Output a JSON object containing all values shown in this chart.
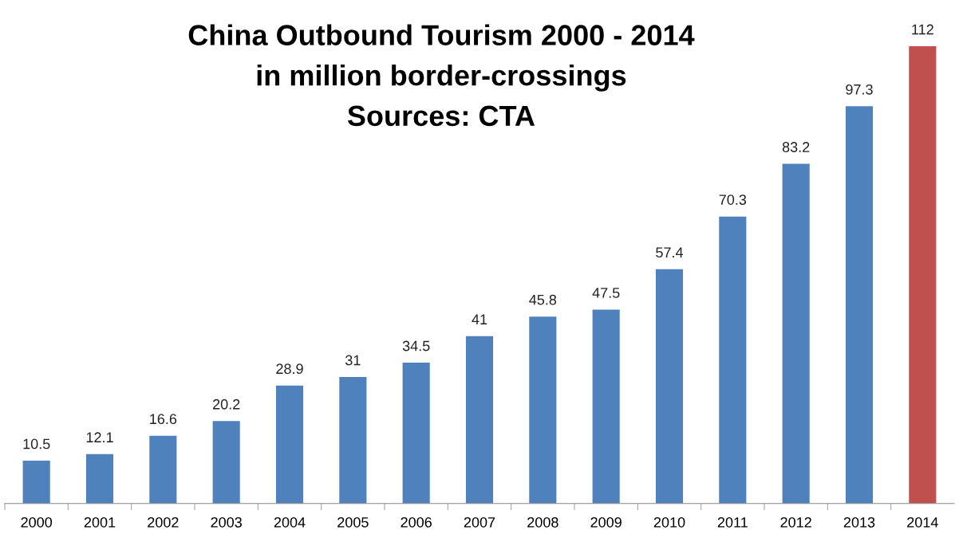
{
  "chart_data": {
    "type": "bar",
    "title": "China Outbound Tourism 2000 - 2014",
    "subtitle": "in million border-crossings",
    "annotations": [
      "Sources: CTA"
    ],
    "categories": [
      "2000",
      "2001",
      "2002",
      "2003",
      "2004",
      "2005",
      "2006",
      "2007",
      "2008",
      "2009",
      "2010",
      "2011",
      "2012",
      "2013",
      "2014"
    ],
    "values": [
      10.5,
      12.1,
      16.6,
      20.2,
      28.9,
      31,
      34.5,
      41,
      45.8,
      47.5,
      57.4,
      70.3,
      83.2,
      97.3,
      112
    ],
    "colors": [
      "#4f81bd",
      "#4f81bd",
      "#4f81bd",
      "#4f81bd",
      "#4f81bd",
      "#4f81bd",
      "#4f81bd",
      "#4f81bd",
      "#4f81bd",
      "#4f81bd",
      "#4f81bd",
      "#4f81bd",
      "#4f81bd",
      "#4f81bd",
      "#c0504d"
    ],
    "data_labels": true,
    "grid": false,
    "legend": false
  }
}
